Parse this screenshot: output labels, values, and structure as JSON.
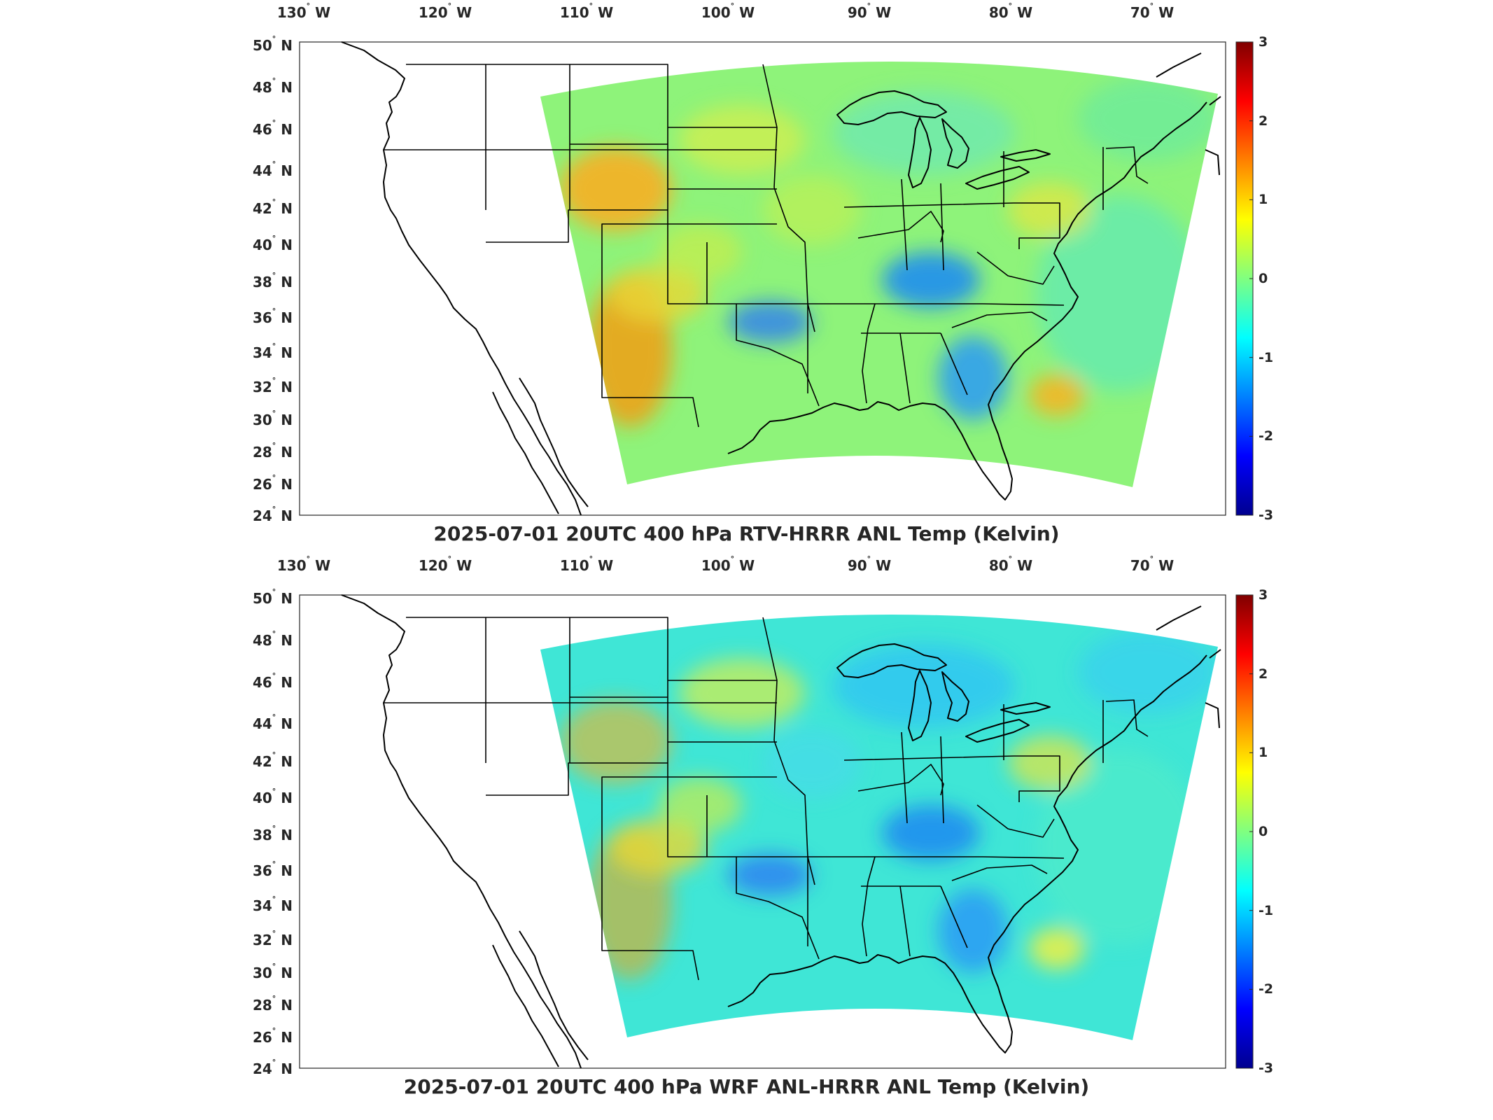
{
  "panels": [
    {
      "title": "2025-07-01 20UTC 400 hPa RTV-HRRR ANL Temp (Kelvin)",
      "lon_labels": [
        {
          "deg": "130",
          "hemi": "W"
        },
        {
          "deg": "120",
          "hemi": "W"
        },
        {
          "deg": "110",
          "hemi": "W"
        },
        {
          "deg": "100",
          "hemi": "W"
        },
        {
          "deg": "90",
          "hemi": "W"
        },
        {
          "deg": "80",
          "hemi": "W"
        },
        {
          "deg": "70",
          "hemi": "W"
        }
      ],
      "lat_labels": [
        {
          "deg": "50",
          "hemi": "N"
        },
        {
          "deg": "48",
          "hemi": "N"
        },
        {
          "deg": "46",
          "hemi": "N"
        },
        {
          "deg": "44",
          "hemi": "N"
        },
        {
          "deg": "42",
          "hemi": "N"
        },
        {
          "deg": "40",
          "hemi": "N"
        },
        {
          "deg": "38",
          "hemi": "N"
        },
        {
          "deg": "36",
          "hemi": "N"
        },
        {
          "deg": "34",
          "hemi": "N"
        },
        {
          "deg": "32",
          "hemi": "N"
        },
        {
          "deg": "30",
          "hemi": "N"
        },
        {
          "deg": "28",
          "hemi": "N"
        },
        {
          "deg": "26",
          "hemi": "N"
        },
        {
          "deg": "24",
          "hemi": "N"
        }
      ],
      "colorbar_ticks": [
        "3",
        "2",
        "1",
        "0",
        "-1",
        "-2",
        "-3"
      ],
      "colorbar_range": [
        -3,
        3
      ],
      "field_mean_k": 0.1,
      "warm_region": "southwest and northern Rockies"
    },
    {
      "title": "2025-07-01 20UTC 400 hPa WRF ANL-HRRR ANL Temp (Kelvin)",
      "lon_labels": [
        {
          "deg": "130",
          "hemi": "W"
        },
        {
          "deg": "120",
          "hemi": "W"
        },
        {
          "deg": "110",
          "hemi": "W"
        },
        {
          "deg": "100",
          "hemi": "W"
        },
        {
          "deg": "90",
          "hemi": "W"
        },
        {
          "deg": "80",
          "hemi": "W"
        },
        {
          "deg": "70",
          "hemi": "W"
        }
      ],
      "lat_labels": [
        {
          "deg": "50",
          "hemi": "N"
        },
        {
          "deg": "48",
          "hemi": "N"
        },
        {
          "deg": "46",
          "hemi": "N"
        },
        {
          "deg": "44",
          "hemi": "N"
        },
        {
          "deg": "42",
          "hemi": "N"
        },
        {
          "deg": "40",
          "hemi": "N"
        },
        {
          "deg": "38",
          "hemi": "N"
        },
        {
          "deg": "36",
          "hemi": "N"
        },
        {
          "deg": "34",
          "hemi": "N"
        },
        {
          "deg": "32",
          "hemi": "N"
        },
        {
          "deg": "30",
          "hemi": "N"
        },
        {
          "deg": "28",
          "hemi": "N"
        },
        {
          "deg": "26",
          "hemi": "N"
        },
        {
          "deg": "24",
          "hemi": "N"
        }
      ],
      "colorbar_ticks": [
        "3",
        "2",
        "1",
        "0",
        "-1",
        "-2",
        "-3"
      ],
      "colorbar_range": [
        -3,
        3
      ],
      "field_mean_k": -0.5,
      "warm_region": "southwest"
    }
  ],
  "colormap": [
    "#00008f",
    "#0000ff",
    "#0080ff",
    "#00ffff",
    "#80ff80",
    "#ffff00",
    "#ff8000",
    "#ff0000",
    "#800000"
  ]
}
